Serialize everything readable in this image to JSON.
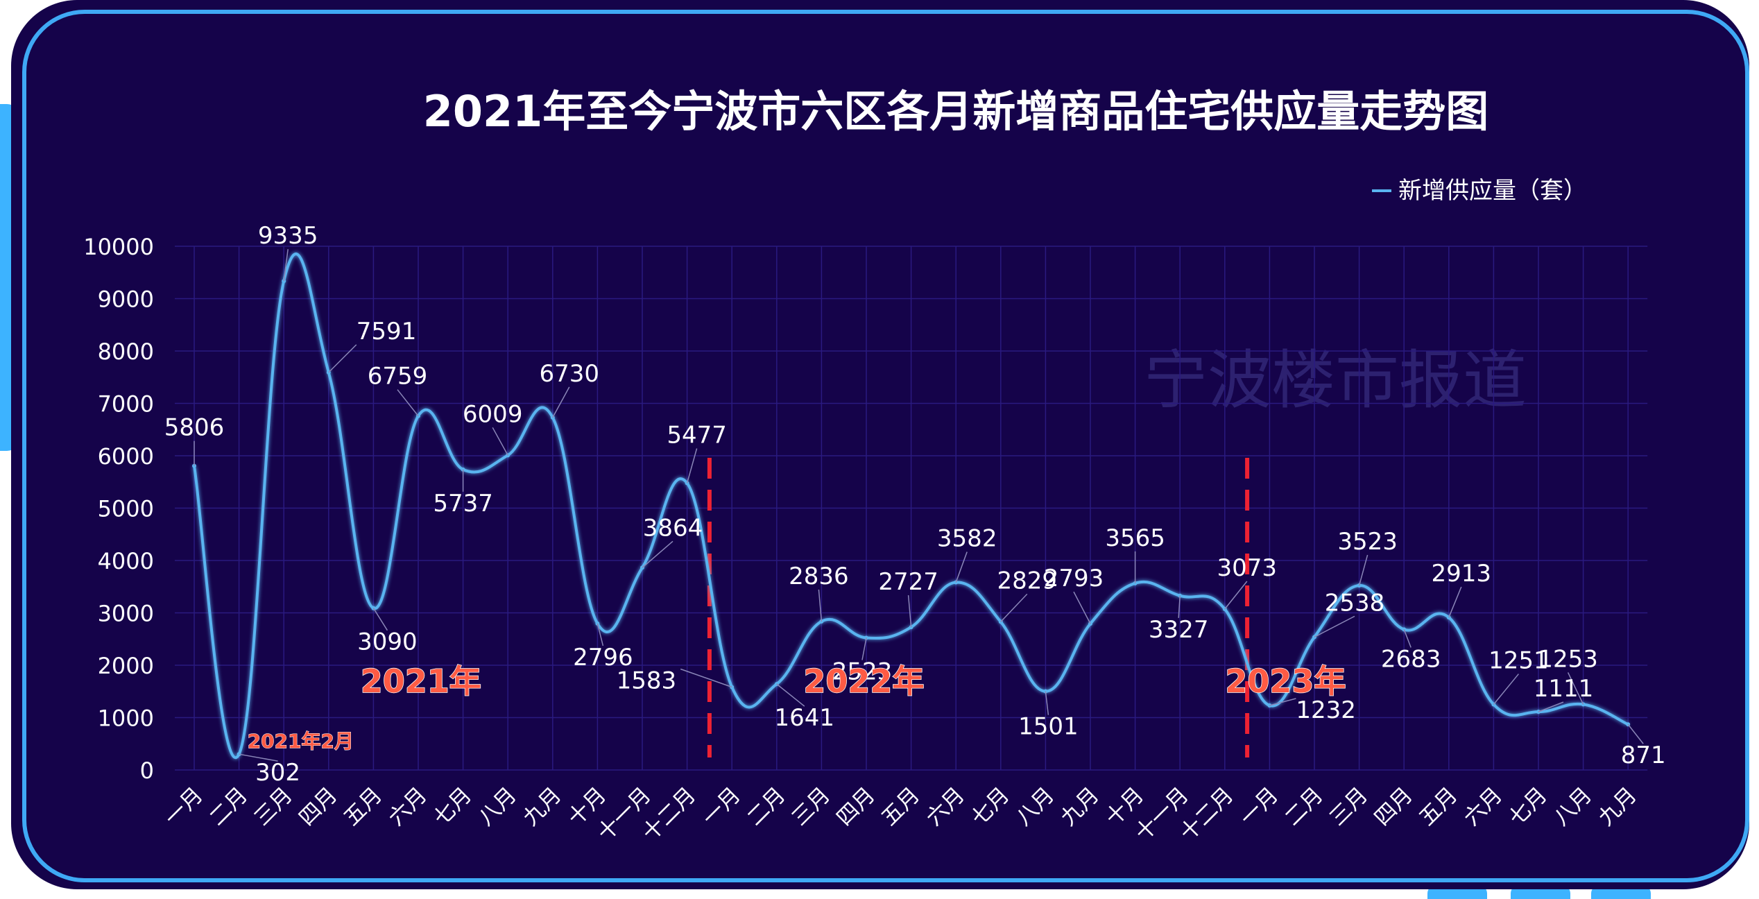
{
  "chart_data": {
    "type": "line",
    "title": "2021年至今宁波市六区各月新增商品住宅供应量走势图",
    "xlabel": "",
    "ylabel": "",
    "ylim": [
      0,
      10000
    ],
    "yticks": [
      "0",
      "1000",
      "2000",
      "3000",
      "4000",
      "5000",
      "6000",
      "7000",
      "8000",
      "9000",
      "10000"
    ],
    "grid": true,
    "legend_position": "top-right",
    "categories": [
      "一月",
      "二月",
      "三月",
      "四月",
      "五月",
      "六月",
      "七月",
      "八月",
      "九月",
      "十月",
      "十一月",
      "十二月",
      "一月",
      "二月",
      "三月",
      "四月",
      "五月",
      "六月",
      "七月",
      "八月",
      "九月",
      "十月",
      "十一月",
      "十二月",
      "一月",
      "二月",
      "三月",
      "四月",
      "五月",
      "六月",
      "七月",
      "八月",
      "九月"
    ],
    "series": [
      {
        "name": "新增供应量（套）",
        "color": "#5ab4f0",
        "values": [
          5806,
          302,
          9335,
          7591,
          3090,
          6759,
          5737,
          6009,
          6730,
          2796,
          3864,
          5477,
          1583,
          1641,
          2836,
          2523,
          2727,
          3582,
          2829,
          1501,
          2793,
          3565,
          3327,
          3073,
          1232,
          2538,
          3523,
          2683,
          2913,
          1251,
          1111,
          1253,
          871
        ]
      }
    ],
    "year_labels": [
      "2021年",
      "2022年",
      "2023年"
    ],
    "annotations": [
      {
        "text": "2021年2月",
        "category_index": 1
      }
    ],
    "watermark": "宁波楼市报道"
  },
  "colors": {
    "background": "#15034a",
    "frame": "#3fa9f5",
    "divider": "#ee2233",
    "year_label": "#ff5b44",
    "text": "#ffffff",
    "grid": "#2a1a80"
  }
}
